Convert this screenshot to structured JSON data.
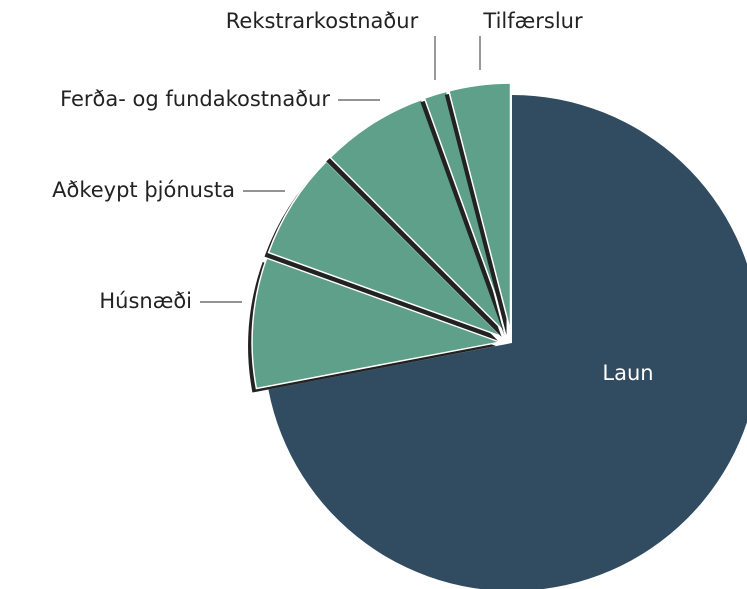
{
  "chart_data": {
    "type": "pie",
    "categories": [
      "Laun",
      "Húsnæði",
      "Aðkeypt þjónusta",
      "Ferða- og fundakostnaður",
      "Rekstrarkostnaður",
      "Tilfærslur"
    ],
    "values": [
      72,
      8.5,
      7,
      7,
      1.5,
      4
    ],
    "colors": [
      "#314b61",
      "#5fa08a",
      "#5fa08a",
      "#5fa08a",
      "#5fa08a",
      "#5fa08a"
    ]
  }
}
